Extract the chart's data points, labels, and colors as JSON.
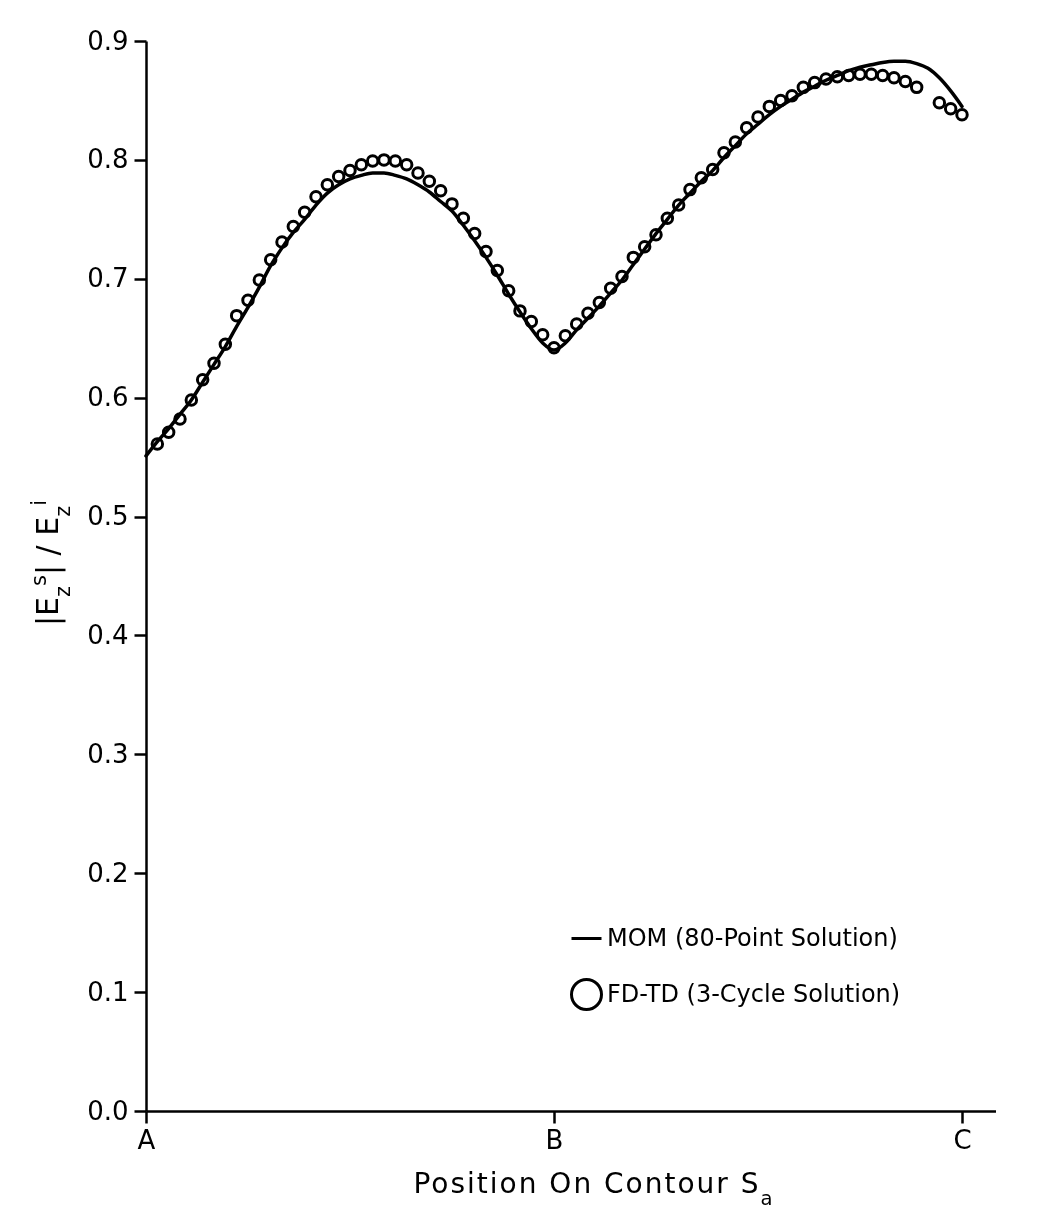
{
  "chart_data": {
    "type": "line",
    "xlabel": "Position On Contour S$_{a}$",
    "ylabel": "|E$_{z}$$^{s}$| / E$_{z}$$^{i}$",
    "categories": [
      "A",
      null,
      null,
      null,
      null,
      null,
      null,
      null,
      null,
      null,
      null,
      null,
      null,
      null,
      null,
      null,
      null,
      null,
      null,
      null,
      null,
      null,
      null,
      null,
      null,
      null,
      null,
      null,
      null,
      null,
      null,
      null,
      null,
      null,
      null,
      null,
      "B",
      null,
      null,
      null,
      null,
      null,
      null,
      null,
      null,
      null,
      null,
      null,
      null,
      null,
      null,
      null,
      null,
      null,
      null,
      null,
      null,
      null,
      null,
      null,
      null,
      null,
      null,
      null,
      null,
      null,
      null,
      null,
      null,
      null,
      null,
      null,
      "C",
      null,
      null,
      null
    ],
    "ylim": [
      0,
      0.9
    ],
    "yticks": [
      {
        "value": 0,
        "label": "0.0"
      },
      0.1,
      0.2,
      0.3,
      0.4,
      0.5,
      0.6,
      0.7,
      0.8,
      0.9
    ],
    "legend": "bottom right",
    "series": [
      {
        "name": "MOM (80-Point Solution)",
        "color": "#000000",
        "line_style": "solid",
        "values": [
          0.551,
          0.563,
          0.574,
          0.586,
          0.598,
          0.613,
          0.628,
          0.643,
          0.66,
          0.676,
          0.693,
          0.711,
          0.726,
          0.739,
          0.75,
          0.762,
          0.772,
          0.779,
          0.784,
          0.787,
          0.789,
          0.789,
          0.787,
          0.784,
          0.779,
          0.773,
          0.765,
          0.757,
          0.745,
          0.732,
          0.718,
          0.703,
          0.687,
          0.672,
          0.658,
          0.646,
          0.64,
          0.646,
          0.657,
          0.667,
          0.677,
          0.688,
          0.699,
          0.712,
          0.725,
          0.738,
          0.75,
          0.762,
          0.772,
          0.782,
          0.791,
          0.802,
          0.812,
          0.822,
          0.83,
          0.838,
          0.845,
          0.851,
          0.857,
          0.862,
          0.867,
          0.871,
          0.875,
          0.878,
          0.88,
          0.882,
          0.883,
          0.883,
          0.881,
          0.877,
          0.869,
          0.858,
          0.845,
          null,
          null,
          null
        ]
      },
      {
        "name": "FD-TD (3-Cycle Solution)",
        "type": "scatter",
        "color": "#000000",
        "marker": "circle",
        "values": [
          null,
          0.561,
          0.571,
          0.582,
          0.598,
          0.615,
          0.629,
          0.645,
          0.669,
          0.682,
          0.699,
          0.716,
          0.731,
          0.744,
          0.756,
          0.769,
          0.779,
          0.786,
          0.791,
          0.796,
          0.799,
          0.8,
          0.799,
          0.796,
          0.789,
          0.782,
          0.774,
          0.763,
          0.751,
          0.738,
          0.723,
          0.707,
          0.69,
          0.673,
          0.664,
          0.653,
          0.642,
          0.652,
          0.662,
          0.671,
          0.68,
          0.692,
          0.702,
          0.718,
          0.727,
          0.737,
          0.751,
          0.762,
          0.775,
          0.785,
          0.792,
          0.806,
          0.815,
          0.827,
          0.836,
          0.845,
          0.85,
          0.854,
          0.861,
          0.865,
          0.868,
          0.87,
          0.871,
          0.872,
          0.872,
          0.871,
          0.869,
          0.866,
          0.861,
          null,
          0.848,
          0.843,
          0.838,
          null,
          null,
          null
        ]
      }
    ]
  }
}
